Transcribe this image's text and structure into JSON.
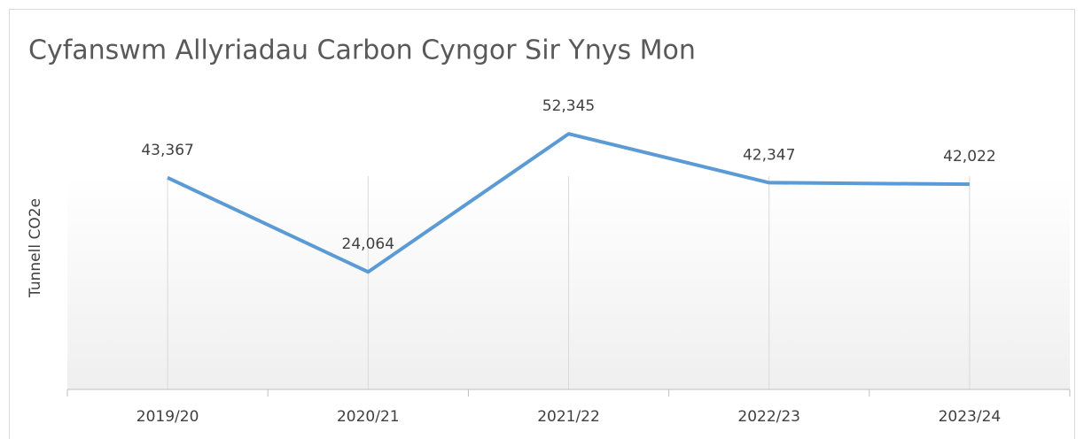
{
  "chart_data": {
    "type": "line",
    "title": "Cyfanswm Allyriadau Carbon Cyngor Sir Ynys Mon",
    "y_label": "Tunnell CO2e",
    "categories": [
      "2019/20",
      "2020/21",
      "2021/22",
      "2022/23",
      "2023/24"
    ],
    "series": [
      {
        "name": "Cyfanswm",
        "color": "#5b9bd5",
        "values": [
          43367,
          24064,
          52345,
          42347,
          42022
        ],
        "value_labels": [
          "43,367",
          "24,064",
          "52,345",
          "42,347",
          "42,022"
        ]
      }
    ],
    "ylim": [
      0,
      60000
    ],
    "grid": true
  }
}
